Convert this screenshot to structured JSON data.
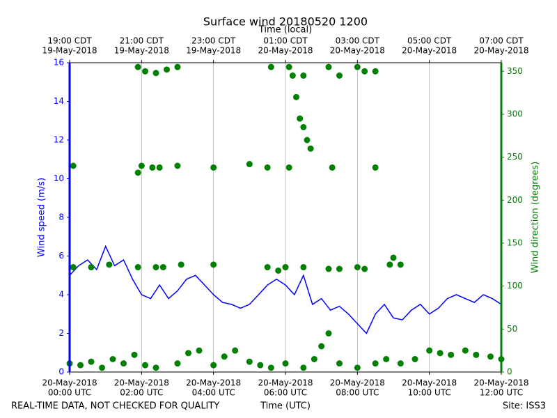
{
  "chart_data": {
    "type": "line",
    "title": "Surface wind 20180520 1200",
    "xlabel": "Time (UTC)",
    "x2label": "Time (local)",
    "ylabel": "Wind speed (m/s)",
    "y2label": "Wind direction (degrees)",
    "footer_left": "REAL-TIME DATA, NOT CHECKED FOR QUALITY",
    "footer_right": "Site: ISS3",
    "grid": "x",
    "xlim": [
      0,
      12
    ],
    "xticks": [
      {
        "value": 0,
        "label": [
          "20-May-2018",
          "00:00 UTC"
        ]
      },
      {
        "value": 2,
        "label": [
          "20-May-2018",
          "02:00 UTC"
        ]
      },
      {
        "value": 4,
        "label": [
          "20-May-2018",
          "04:00 UTC"
        ]
      },
      {
        "value": 6,
        "label": [
          "20-May-2018",
          "06:00 UTC"
        ]
      },
      {
        "value": 8,
        "label": [
          "20-May-2018",
          "08:00 UTC"
        ]
      },
      {
        "value": 10,
        "label": [
          "20-May-2018",
          "10:00 UTC"
        ]
      },
      {
        "value": 12,
        "label": [
          "20-May-2018",
          "12:00 UTC"
        ]
      }
    ],
    "x2ticks": [
      {
        "value": 0,
        "label": [
          "19:00 CDT",
          "19-May-2018"
        ]
      },
      {
        "value": 2,
        "label": [
          "21:00 CDT",
          "19-May-2018"
        ]
      },
      {
        "value": 4,
        "label": [
          "23:00 CDT",
          "19-May-2018"
        ]
      },
      {
        "value": 6,
        "label": [
          "01:00 CDT",
          "20-May-2018"
        ]
      },
      {
        "value": 8,
        "label": [
          "03:00 CDT",
          "20-May-2018"
        ]
      },
      {
        "value": 10,
        "label": [
          "05:00 CDT",
          "20-May-2018"
        ]
      },
      {
        "value": 12,
        "label": [
          "07:00 CDT",
          "20-May-2018"
        ]
      }
    ],
    "ylim": [
      0,
      16
    ],
    "yticks": [
      0,
      2,
      4,
      6,
      8,
      10,
      12,
      14,
      16
    ],
    "ycolor": "#0000ff",
    "y2lim": [
      0,
      360
    ],
    "y2ticks": [
      0,
      50,
      100,
      150,
      200,
      250,
      300,
      350
    ],
    "y2color": "#008000",
    "series": [
      {
        "name": "Wind speed",
        "type": "line",
        "axis": "y",
        "color": "#0000ff",
        "x": [
          0,
          0.25,
          0.5,
          0.75,
          1,
          1.25,
          1.5,
          1.75,
          2,
          2.25,
          2.5,
          2.75,
          3,
          3.25,
          3.5,
          3.75,
          4,
          4.25,
          4.5,
          4.75,
          5,
          5.25,
          5.5,
          5.75,
          6,
          6.25,
          6.5,
          6.75,
          7,
          7.25,
          7.5,
          7.75,
          8,
          8.25,
          8.5,
          8.75,
          9,
          9.25,
          9.5,
          9.75,
          10,
          10.25,
          10.5,
          10.75,
          11,
          11.25,
          11.5,
          11.75,
          12
        ],
        "values": [
          5.0,
          5.5,
          5.8,
          5.3,
          6.5,
          5.5,
          5.8,
          4.8,
          4.0,
          3.8,
          4.5,
          3.8,
          4.2,
          4.8,
          5.0,
          4.5,
          4.0,
          3.6,
          3.5,
          3.3,
          3.5,
          4.0,
          4.5,
          4.8,
          4.5,
          4.0,
          5.0,
          3.5,
          3.8,
          3.2,
          3.4,
          3.0,
          2.5,
          2.0,
          3.0,
          3.5,
          2.8,
          2.7,
          3.2,
          3.5,
          3.0,
          3.3,
          3.8,
          4.0,
          3.8,
          3.6,
          4.0,
          3.8,
          3.5
        ]
      },
      {
        "name": "Wind direction",
        "type": "scatter",
        "axis": "y2",
        "color": "#008000",
        "x": [
          0,
          0.3,
          0.6,
          0.9,
          1.2,
          1.5,
          1.8,
          2.1,
          2.4,
          3.0,
          3.3,
          3.6,
          4.0,
          4.3,
          4.6,
          5.0,
          5.3,
          5.6,
          6.0,
          6.5,
          6.8,
          7.0,
          7.2,
          7.5,
          8.0,
          8.5,
          8.8,
          9.2,
          9.6,
          10.0,
          10.3,
          10.6,
          11.0,
          11.3,
          11.7,
          12.0,
          0.1,
          0.6,
          1.1,
          1.9,
          2.4,
          2.6,
          3.1,
          4.0,
          5.5,
          5.8,
          6.0,
          6.5,
          7.2,
          7.5,
          8.0,
          8.2,
          8.9,
          9.0,
          9.2,
          0.1,
          1.9,
          2.0,
          2.3,
          2.5,
          3.0,
          4.0,
          5.0,
          5.5,
          6.1,
          7.3,
          8.5,
          1.9,
          2.1,
          2.4,
          2.7,
          3.0,
          5.6,
          6.1,
          6.2,
          6.5,
          7.2,
          7.5,
          8.0,
          8.2,
          8.5,
          6.3,
          6.4,
          6.5,
          6.6,
          6.7
        ],
        "values": [
          10,
          8,
          12,
          5,
          15,
          10,
          20,
          8,
          5,
          10,
          22,
          25,
          8,
          18,
          25,
          12,
          8,
          5,
          10,
          5,
          15,
          30,
          45,
          10,
          5,
          10,
          15,
          10,
          15,
          25,
          22,
          20,
          25,
          20,
          18,
          15,
          122,
          122,
          125,
          122,
          122,
          122,
          125,
          125,
          122,
          118,
          122,
          122,
          120,
          120,
          122,
          120,
          125,
          133,
          125,
          240,
          232,
          240,
          238,
          238,
          240,
          238,
          242,
          238,
          238,
          238,
          238,
          355,
          350,
          348,
          352,
          355,
          355,
          355,
          345,
          345,
          355,
          345,
          355,
          350,
          350,
          320,
          295,
          285,
          270,
          260
        ]
      }
    ]
  }
}
